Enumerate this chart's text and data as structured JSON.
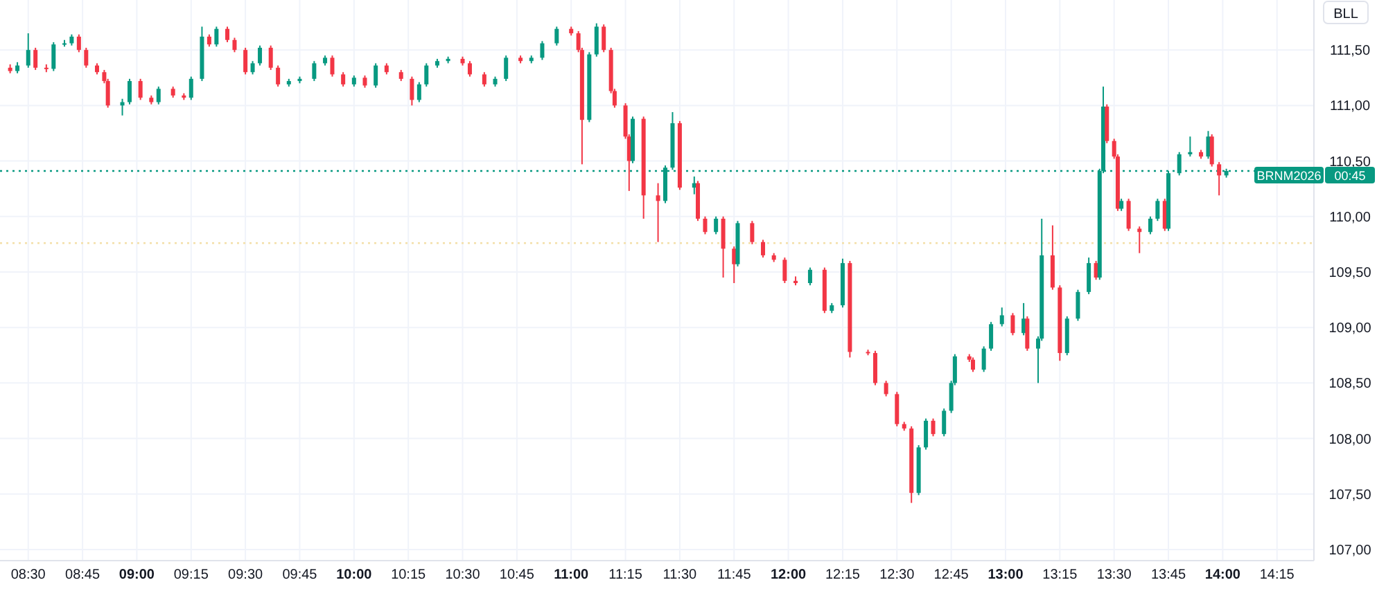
{
  "chart_data": {
    "type": "candlestick",
    "x": [
      8.4167,
      8.45,
      8.5,
      8.5333,
      8.5833,
      8.6167,
      8.6667,
      8.7,
      8.7333,
      8.7667,
      8.8167,
      8.85,
      8.8667,
      8.9333,
      8.9667,
      9.0167,
      9.0667,
      9.1,
      9.1667,
      9.2167,
      9.25,
      9.3,
      9.3333,
      9.3667,
      9.4167,
      9.45,
      9.5,
      9.5333,
      9.5667,
      9.6167,
      9.65,
      9.7,
      9.75,
      9.8167,
      9.8667,
      9.9,
      9.95,
      10.0,
      10.05,
      10.1,
      10.15,
      10.2167,
      10.2667,
      10.3,
      10.3333,
      10.3833,
      10.4333,
      10.5,
      10.5333,
      10.6,
      10.65,
      10.7,
      10.7667,
      10.8167,
      10.8667,
      10.9333,
      11.0,
      11.0333,
      11.05,
      11.0833,
      11.1167,
      11.15,
      11.1833,
      11.2,
      11.25,
      11.2667,
      11.2833,
      11.3333,
      11.4,
      11.4333,
      11.4667,
      11.5,
      11.5667,
      11.5833,
      11.6167,
      11.6667,
      11.7,
      11.75,
      11.7667,
      11.8333,
      11.8833,
      11.9333,
      11.9833,
      12.0333,
      12.1,
      12.1667,
      12.2,
      12.25,
      12.2833,
      12.3667,
      12.4,
      12.45,
      12.5,
      12.5333,
      12.5667,
      12.6,
      12.6333,
      12.6667,
      12.7167,
      12.75,
      12.7667,
      12.8333,
      12.85,
      12.9,
      12.9333,
      12.9833,
      13.0333,
      13.0833,
      13.1,
      13.15,
      13.1667,
      13.2167,
      13.25,
      13.2833,
      13.3333,
      13.3833,
      13.4167,
      13.4333,
      13.45,
      13.4667,
      13.5,
      13.5167,
      13.5333,
      13.5667,
      13.6167,
      13.6667,
      13.7,
      13.7333,
      13.75,
      13.8,
      13.85,
      13.9,
      13.9333,
      13.95,
      13.9833,
      14.0167
    ],
    "ohlc": [
      [
        111.34,
        111.37,
        111.29,
        111.31
      ],
      [
        111.31,
        111.39,
        111.29,
        111.36
      ],
      [
        111.36,
        111.65,
        111.34,
        111.5
      ],
      [
        111.5,
        111.52,
        111.32,
        111.34
      ],
      [
        111.34,
        111.37,
        111.3,
        111.33
      ],
      [
        111.33,
        111.57,
        111.31,
        111.55
      ],
      [
        111.55,
        111.59,
        111.53,
        111.56
      ],
      [
        111.56,
        111.64,
        111.54,
        111.62
      ],
      [
        111.62,
        111.64,
        111.48,
        111.5
      ],
      [
        111.5,
        111.52,
        111.34,
        111.36
      ],
      [
        111.36,
        111.38,
        111.28,
        111.3
      ],
      [
        111.3,
        111.32,
        111.2,
        111.22
      ],
      [
        111.22,
        111.24,
        110.98,
        111.0
      ],
      [
        111.0,
        111.06,
        110.91,
        111.03
      ],
      [
        111.03,
        111.24,
        111.01,
        111.22
      ],
      [
        111.22,
        111.24,
        111.05,
        111.07
      ],
      [
        111.07,
        111.09,
        111.01,
        111.03
      ],
      [
        111.03,
        111.17,
        111.01,
        111.15
      ],
      [
        111.15,
        111.17,
        111.07,
        111.09
      ],
      [
        111.09,
        111.11,
        111.05,
        111.07
      ],
      [
        111.07,
        111.26,
        111.05,
        111.24
      ],
      [
        111.24,
        111.71,
        111.22,
        111.62
      ],
      [
        111.62,
        111.64,
        111.53,
        111.55
      ],
      [
        111.55,
        111.71,
        111.53,
        111.69
      ],
      [
        111.69,
        111.71,
        111.57,
        111.59
      ],
      [
        111.59,
        111.61,
        111.48,
        111.5
      ],
      [
        111.5,
        111.52,
        111.28,
        111.3
      ],
      [
        111.3,
        111.4,
        111.28,
        111.38
      ],
      [
        111.38,
        111.54,
        111.36,
        111.52
      ],
      [
        111.52,
        111.54,
        111.32,
        111.34
      ],
      [
        111.34,
        111.36,
        111.17,
        111.19
      ],
      [
        111.19,
        111.24,
        111.17,
        111.22
      ],
      [
        111.22,
        111.26,
        111.2,
        111.24
      ],
      [
        111.24,
        111.4,
        111.22,
        111.38
      ],
      [
        111.38,
        111.45,
        111.36,
        111.43
      ],
      [
        111.43,
        111.45,
        111.26,
        111.28
      ],
      [
        111.28,
        111.3,
        111.17,
        111.19
      ],
      [
        111.19,
        111.27,
        111.17,
        111.25
      ],
      [
        111.25,
        111.27,
        111.16,
        111.18
      ],
      [
        111.18,
        111.38,
        111.16,
        111.36
      ],
      [
        111.36,
        111.38,
        111.28,
        111.3
      ],
      [
        111.3,
        111.32,
        111.22,
        111.24
      ],
      [
        111.24,
        111.26,
        111.0,
        111.05
      ],
      [
        111.05,
        111.21,
        111.03,
        111.19
      ],
      [
        111.19,
        111.38,
        111.17,
        111.36
      ],
      [
        111.36,
        111.42,
        111.34,
        111.4
      ],
      [
        111.4,
        111.44,
        111.38,
        111.42
      ],
      [
        111.42,
        111.44,
        111.36,
        111.38
      ],
      [
        111.38,
        111.4,
        111.26,
        111.28
      ],
      [
        111.28,
        111.3,
        111.17,
        111.19
      ],
      [
        111.19,
        111.26,
        111.17,
        111.24
      ],
      [
        111.24,
        111.45,
        111.22,
        111.43
      ],
      [
        111.43,
        111.45,
        111.38,
        111.4
      ],
      [
        111.4,
        111.45,
        111.38,
        111.43
      ],
      [
        111.43,
        111.58,
        111.41,
        111.56
      ],
      [
        111.56,
        111.71,
        111.54,
        111.69
      ],
      [
        111.69,
        111.71,
        111.63,
        111.65
      ],
      [
        111.65,
        111.67,
        111.48,
        111.5
      ],
      [
        111.5,
        111.52,
        110.47,
        110.87
      ],
      [
        110.87,
        111.48,
        110.85,
        111.46
      ],
      [
        111.46,
        111.74,
        111.44,
        111.71
      ],
      [
        111.71,
        111.73,
        111.48,
        111.5
      ],
      [
        111.5,
        111.52,
        111.11,
        111.13
      ],
      [
        111.13,
        111.15,
        110.98,
        111.0
      ],
      [
        111.0,
        111.02,
        110.7,
        110.72
      ],
      [
        110.72,
        110.74,
        110.23,
        110.5
      ],
      [
        110.5,
        110.9,
        110.48,
        110.88
      ],
      [
        110.88,
        110.9,
        109.98,
        110.19
      ],
      [
        110.19,
        110.3,
        109.77,
        110.14
      ],
      [
        110.14,
        110.46,
        110.12,
        110.44
      ],
      [
        110.44,
        110.94,
        110.42,
        110.84
      ],
      [
        110.84,
        110.86,
        110.24,
        110.26
      ],
      [
        110.26,
        110.36,
        110.2,
        110.3
      ],
      [
        110.3,
        110.32,
        109.96,
        109.98
      ],
      [
        109.98,
        110.0,
        109.84,
        109.86
      ],
      [
        109.86,
        110.0,
        109.84,
        109.98
      ],
      [
        109.98,
        110.0,
        109.45,
        109.71
      ],
      [
        109.71,
        109.73,
        109.4,
        109.57
      ],
      [
        109.57,
        109.96,
        109.55,
        109.94
      ],
      [
        109.94,
        109.96,
        109.75,
        109.77
      ],
      [
        109.77,
        109.79,
        109.63,
        109.65
      ],
      [
        109.65,
        109.67,
        109.59,
        109.61
      ],
      [
        109.61,
        109.63,
        109.4,
        109.42
      ],
      [
        109.42,
        109.46,
        109.38,
        109.4
      ],
      [
        109.4,
        109.54,
        109.38,
        109.52
      ],
      [
        109.52,
        109.54,
        109.13,
        109.15
      ],
      [
        109.15,
        109.22,
        109.13,
        109.2
      ],
      [
        109.2,
        109.62,
        109.18,
        109.58
      ],
      [
        109.58,
        109.6,
        108.73,
        108.78
      ],
      [
        108.78,
        108.8,
        108.75,
        108.77
      ],
      [
        108.77,
        108.79,
        108.48,
        108.5
      ],
      [
        108.5,
        108.52,
        108.38,
        108.4
      ],
      [
        108.4,
        108.42,
        108.11,
        108.13
      ],
      [
        108.13,
        108.15,
        108.07,
        108.09
      ],
      [
        108.09,
        108.11,
        107.42,
        107.51
      ],
      [
        107.51,
        107.94,
        107.49,
        107.92
      ],
      [
        107.92,
        108.18,
        107.9,
        108.16
      ],
      [
        108.16,
        108.18,
        108.02,
        108.04
      ],
      [
        108.04,
        108.27,
        108.02,
        108.25
      ],
      [
        108.25,
        108.52,
        108.23,
        108.5
      ],
      [
        108.5,
        108.76,
        108.48,
        108.74
      ],
      [
        108.74,
        108.76,
        108.69,
        108.71
      ],
      [
        108.71,
        108.73,
        108.6,
        108.62
      ],
      [
        108.62,
        108.83,
        108.6,
        108.81
      ],
      [
        108.81,
        109.05,
        108.79,
        109.03
      ],
      [
        109.03,
        109.18,
        109.01,
        109.11
      ],
      [
        109.11,
        109.13,
        108.93,
        108.95
      ],
      [
        108.95,
        109.22,
        108.93,
        109.08
      ],
      [
        109.08,
        109.1,
        108.79,
        108.81
      ],
      [
        108.81,
        108.92,
        108.5,
        108.9
      ],
      [
        108.9,
        109.98,
        108.88,
        109.65
      ],
      [
        109.65,
        109.92,
        109.34,
        109.36
      ],
      [
        109.36,
        109.38,
        108.7,
        108.77
      ],
      [
        108.77,
        109.1,
        108.75,
        109.08
      ],
      [
        109.08,
        109.34,
        109.06,
        109.32
      ],
      [
        109.32,
        109.63,
        109.3,
        109.58
      ],
      [
        109.58,
        109.6,
        109.43,
        109.45
      ],
      [
        109.45,
        110.43,
        109.43,
        110.41
      ],
      [
        110.41,
        111.17,
        110.39,
        110.99
      ],
      [
        110.99,
        111.01,
        110.66,
        110.68
      ],
      [
        110.68,
        110.7,
        110.52,
        110.54
      ],
      [
        110.54,
        110.56,
        110.05,
        110.07
      ],
      [
        110.07,
        110.16,
        110.05,
        110.14
      ],
      [
        110.14,
        110.16,
        109.87,
        109.89
      ],
      [
        109.89,
        109.91,
        109.67,
        109.86
      ],
      [
        109.86,
        110.0,
        109.84,
        109.98
      ],
      [
        109.98,
        110.16,
        109.96,
        110.14
      ],
      [
        110.14,
        110.16,
        109.87,
        109.89
      ],
      [
        109.89,
        110.41,
        109.87,
        110.39
      ],
      [
        110.39,
        110.58,
        110.37,
        110.56
      ],
      [
        110.56,
        110.72,
        110.54,
        110.58
      ],
      [
        110.58,
        110.6,
        110.52,
        110.54
      ],
      [
        110.54,
        110.77,
        110.52,
        110.72
      ],
      [
        110.72,
        110.74,
        110.45,
        110.47
      ],
      [
        110.47,
        110.49,
        110.19,
        110.37
      ],
      [
        110.37,
        110.43,
        110.35,
        110.41
      ]
    ],
    "xlim": [
      8.37,
      14.42
    ],
    "xticks": [
      {
        "value": 8.5,
        "label": "08:30"
      },
      {
        "value": 8.75,
        "label": "08:45"
      },
      {
        "value": 9,
        "label": "09:00"
      },
      {
        "value": 9.25,
        "label": "09:15"
      },
      {
        "value": 9.5,
        "label": "09:30"
      },
      {
        "value": 9.75,
        "label": "09:45"
      },
      {
        "value": 10,
        "label": "10:00"
      },
      {
        "value": 10.25,
        "label": "10:15"
      },
      {
        "value": 10.5,
        "label": "10:30"
      },
      {
        "value": 10.75,
        "label": "10:45"
      },
      {
        "value": 11,
        "label": "11:00"
      },
      {
        "value": 11.25,
        "label": "11:15"
      },
      {
        "value": 11.5,
        "label": "11:30"
      },
      {
        "value": 11.75,
        "label": "11:45"
      },
      {
        "value": 12,
        "label": "12:00"
      },
      {
        "value": 12.25,
        "label": "12:15"
      },
      {
        "value": 12.5,
        "label": "12:30"
      },
      {
        "value": 12.75,
        "label": "12:45"
      },
      {
        "value": 13,
        "label": "13:00"
      },
      {
        "value": 13.25,
        "label": "13:15"
      },
      {
        "value": 13.5,
        "label": "13:30"
      },
      {
        "value": 13.75,
        "label": "13:45"
      },
      {
        "value": 14,
        "label": "14:00"
      },
      {
        "value": 14.25,
        "label": "14:15"
      }
    ],
    "ylim": [
      106.9,
      111.95
    ],
    "yticks": [
      {
        "value": 107,
        "label": "107,00"
      },
      {
        "value": 107.5,
        "label": "107,50"
      },
      {
        "value": 108,
        "label": "108,00"
      },
      {
        "value": 108.5,
        "label": "108,50"
      },
      {
        "value": 109,
        "label": "109,00"
      },
      {
        "value": 109.5,
        "label": "109,50"
      },
      {
        "value": 110,
        "label": "110,00"
      },
      {
        "value": 110.5,
        "label": "110,50"
      },
      {
        "value": 111,
        "label": "111,00"
      },
      {
        "value": 111.5,
        "label": "111,50"
      }
    ],
    "grid": true,
    "ref_lines": [
      {
        "axis": "y",
        "value": 110.41,
        "label": "BRNM2026",
        "color": "#089981",
        "line_style": "dotted"
      },
      {
        "axis": "y",
        "value": 109.76,
        "color": "#f3dfa8",
        "line_style": "dotted"
      }
    ],
    "annotations": [
      "BLL",
      "00:45"
    ]
  }
}
